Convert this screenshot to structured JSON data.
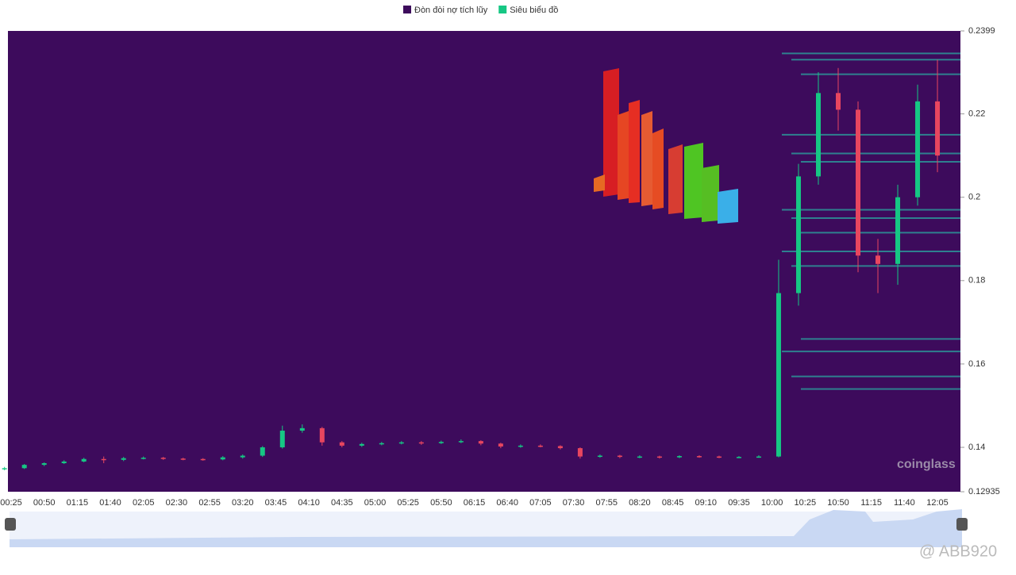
{
  "chart_data": {
    "type": "candlestick",
    "series": [
      {
        "name": "Đòn đòi nợ tích lũy",
        "color": "#3d0b5c",
        "values": [
          0.2345,
          0.233,
          0.2295,
          0.215,
          0.2105,
          0.2085,
          0.197,
          0.195,
          0.1915,
          0.187,
          0.1835,
          0.166,
          0.163,
          0.157,
          0.154
        ]
      },
      {
        "name": "Siêu biểu đồ",
        "color": "#16c784",
        "down_color": "#e8465f",
        "x": [
          "00:20",
          "00:35",
          "00:50",
          "01:05",
          "01:20",
          "01:35",
          "01:50",
          "02:05",
          "02:20",
          "02:35",
          "02:50",
          "03:05",
          "03:20",
          "03:35",
          "03:50",
          "04:05",
          "04:20",
          "04:35",
          "04:50",
          "05:05",
          "05:20",
          "05:35",
          "05:50",
          "06:05",
          "06:20",
          "06:35",
          "06:50",
          "07:05",
          "07:20",
          "07:35",
          "07:50",
          "08:05",
          "08:20",
          "08:35",
          "08:50",
          "09:05",
          "09:20",
          "09:35",
          "09:50",
          "10:05",
          "10:20",
          "10:35",
          "10:50",
          "11:05",
          "11:20",
          "11:35",
          "11:50",
          "12:05"
        ],
        "open": [
          0.1348,
          0.135,
          0.1358,
          0.1362,
          0.1366,
          0.1372,
          0.137,
          0.1374,
          0.1375,
          0.1373,
          0.1372,
          0.1371,
          0.1376,
          0.138,
          0.14,
          0.144,
          0.1446,
          0.1412,
          0.1404,
          0.1408,
          0.141,
          0.1412,
          0.141,
          0.1413,
          0.1415,
          0.1409,
          0.1402,
          0.1404,
          0.1403,
          0.1398,
          0.1378,
          0.138,
          0.1377,
          0.1378,
          0.1376,
          0.1379,
          0.1378,
          0.1376,
          0.1377,
          0.1378,
          0.177,
          0.205,
          0.225,
          0.221,
          0.186,
          0.184,
          0.2,
          0.223
        ],
        "high": [
          0.1353,
          0.136,
          0.1364,
          0.1369,
          0.1375,
          0.1378,
          0.1377,
          0.1378,
          0.1377,
          0.1375,
          0.1374,
          0.1379,
          0.1383,
          0.1403,
          0.1452,
          0.1455,
          0.1449,
          0.1415,
          0.1411,
          0.1413,
          0.1415,
          0.1415,
          0.1416,
          0.1419,
          0.1417,
          0.1411,
          0.1407,
          0.1407,
          0.1405,
          0.14,
          0.1383,
          0.1382,
          0.1381,
          0.138,
          0.1381,
          0.1381,
          0.138,
          0.1379,
          0.1381,
          0.185,
          0.208,
          0.23,
          0.231,
          0.223,
          0.19,
          0.203,
          0.227,
          0.233
        ],
        "low": [
          0.1345,
          0.1348,
          0.1355,
          0.136,
          0.1364,
          0.1362,
          0.1367,
          0.1371,
          0.137,
          0.1369,
          0.1368,
          0.1369,
          0.1373,
          0.1377,
          0.1397,
          0.1435,
          0.1404,
          0.14,
          0.1401,
          0.1405,
          0.1407,
          0.1406,
          0.1408,
          0.141,
          0.1405,
          0.1398,
          0.1399,
          0.14,
          0.1395,
          0.1373,
          0.1375,
          0.1374,
          0.1374,
          0.1373,
          0.1374,
          0.1375,
          0.1374,
          0.1374,
          0.1375,
          0.1376,
          0.174,
          0.203,
          0.216,
          0.182,
          0.177,
          0.179,
          0.198,
          0.206
        ],
        "close": [
          0.135,
          0.1358,
          0.1362,
          0.1366,
          0.1372,
          0.137,
          0.1374,
          0.1375,
          0.1373,
          0.1372,
          0.1371,
          0.1376,
          0.138,
          0.14,
          0.144,
          0.1446,
          0.1412,
          0.1404,
          0.1408,
          0.141,
          0.1412,
          0.141,
          0.1413,
          0.1415,
          0.1409,
          0.1402,
          0.1404,
          0.1403,
          0.1398,
          0.1378,
          0.138,
          0.1377,
          0.1378,
          0.1376,
          0.1379,
          0.1378,
          0.1376,
          0.1377,
          0.1378,
          0.177,
          0.205,
          0.225,
          0.221,
          0.186,
          0.184,
          0.2,
          0.223,
          0.21
        ]
      }
    ],
    "ylim": [
      0.12935,
      0.2399
    ],
    "yticks": [
      0.12935,
      0.14,
      0.16,
      0.18,
      0.2,
      0.22,
      0.2399
    ],
    "xticks": [
      "00:25",
      "00:50",
      "01:15",
      "01:40",
      "02:05",
      "02:30",
      "02:55",
      "03:20",
      "03:45",
      "04:10",
      "04:35",
      "05:00",
      "05:25",
      "05:50",
      "06:15",
      "06:40",
      "07:05",
      "07:30",
      "07:55",
      "08:20",
      "08:45",
      "09:10",
      "09:35",
      "10:00",
      "10:25",
      "10:50",
      "11:15",
      "11:40",
      "12:05"
    ],
    "watermark": "coinglass",
    "credit": "@ ABB920"
  }
}
